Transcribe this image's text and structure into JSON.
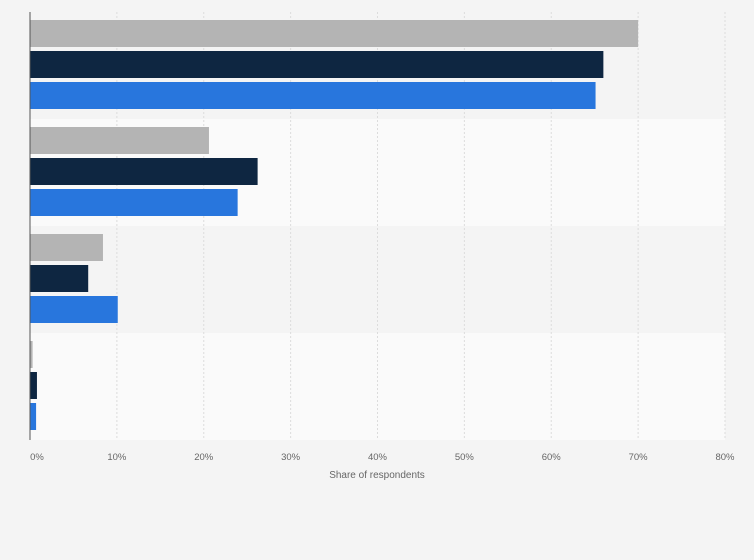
{
  "chart_data": {
    "type": "bar",
    "orientation": "horizontal",
    "categories": [
      "",
      "",
      "",
      ""
    ],
    "series": [
      {
        "values": [
          70.0,
          20.6,
          8.4,
          0.3
        ],
        "color": "#b4b4b4"
      },
      {
        "values": [
          66.0,
          26.2,
          6.7,
          0.8
        ],
        "color": "#0e2641"
      },
      {
        "values": [
          65.1,
          23.9,
          10.1,
          0.7
        ],
        "color": "#2876dd"
      }
    ],
    "xlabel": "Share of respondents",
    "ylabel": "",
    "xlim": [
      0,
      80
    ],
    "xticks": [
      "0%",
      "10%",
      "20%",
      "30%",
      "40%",
      "50%",
      "60%",
      "70%",
      "80%"
    ],
    "grid": true,
    "legend": "none"
  }
}
